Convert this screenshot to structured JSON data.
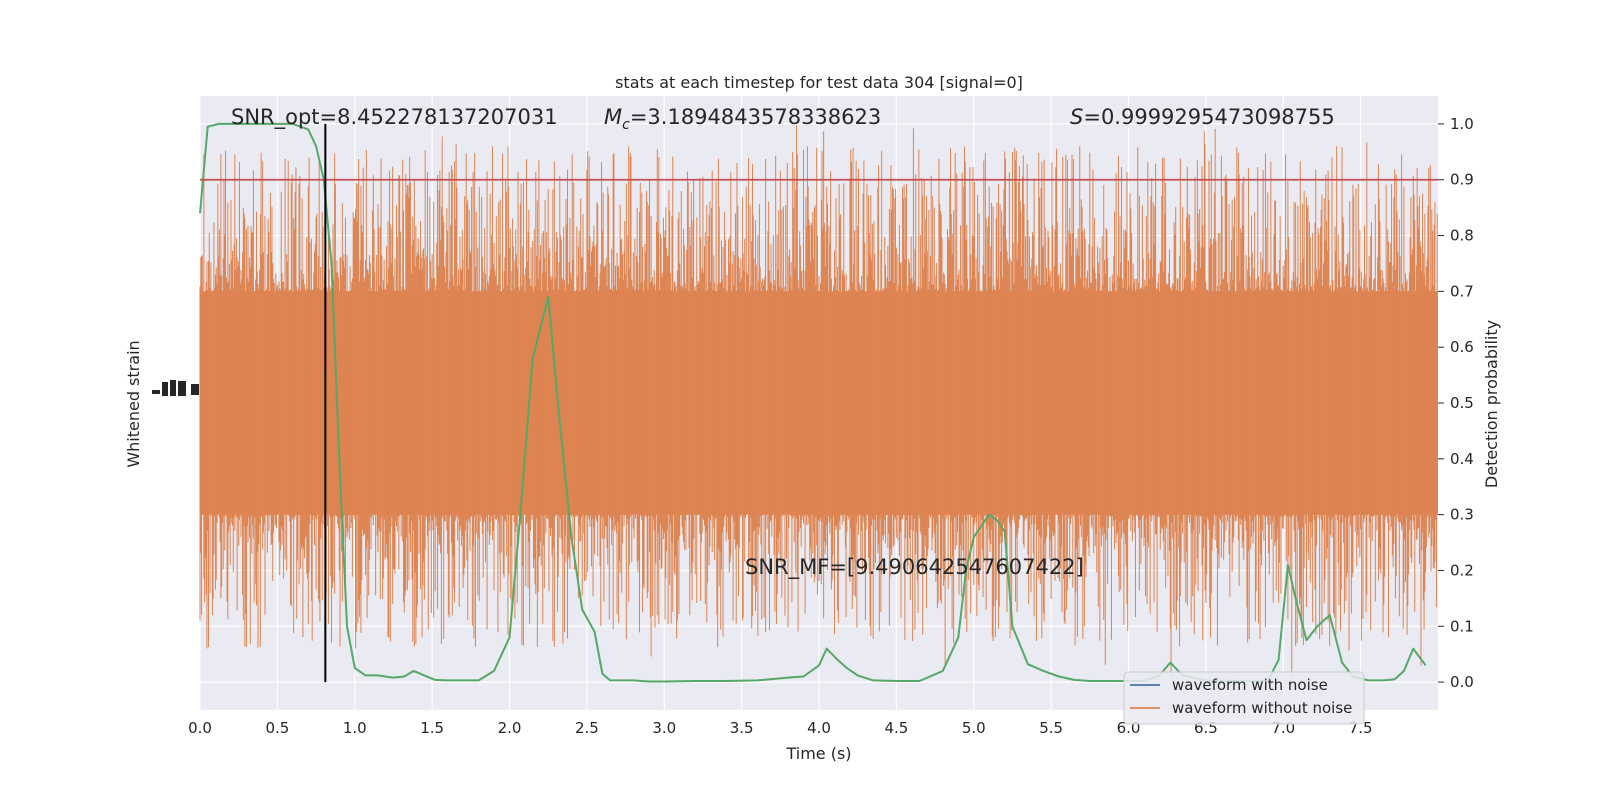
{
  "chart_data": {
    "type": "line",
    "title": "stats at each timestep for test data 304 [signal=0]",
    "xlabel": "Time (s)",
    "ylabel_left": "Whitened strain",
    "ylabel_right": "Detection probability",
    "xlim": [
      0.0,
      8.0
    ],
    "ylim_right": [
      -0.05,
      1.05
    ],
    "grid": true,
    "x_ticks": [
      "0.0",
      "0.5",
      "1.0",
      "1.5",
      "2.0",
      "2.5",
      "3.0",
      "3.5",
      "4.0",
      "4.5",
      "5.0",
      "5.5",
      "6.0",
      "6.5",
      "7.0",
      "7.5"
    ],
    "y_ticks_right": [
      "0.0",
      "0.1",
      "0.2",
      "0.3",
      "0.4",
      "0.5",
      "0.6",
      "0.7",
      "0.8",
      "0.9",
      "1.0"
    ],
    "annotations": {
      "snr_opt": "SNR_opt=8.452278137207031",
      "mc_symbol": "M",
      "mc_subscript": "c",
      "mc_value": "=3.1894843578338623",
      "s_symbol": "S",
      "s_value": "=0.9999295473098755",
      "snr_mf": "SNR_MF=[9.490642547607422]"
    },
    "threshold": {
      "y": 0.9,
      "color": "#c44e52"
    },
    "marker_line": {
      "x": 0.81,
      "color": "#000000"
    },
    "legend": {
      "placement": "lower-right",
      "entries": [
        {
          "label": "waveform with noise",
          "color": "#4c72b0"
        },
        {
          "label": "waveform without noise",
          "color": "#dd8452"
        }
      ]
    },
    "series": [
      {
        "name": "waveform without noise",
        "color": "#dd8452",
        "description_of_envelope": "dense noise band",
        "band_y": [
          0.3,
          0.7
        ],
        "spike_peak_y": 1.0,
        "spike_trough_y": 0.0
      },
      {
        "name": "detection probability",
        "color": "#55a868",
        "x": [
          0.0,
          0.05,
          0.12,
          0.2,
          0.3,
          0.4,
          0.5,
          0.6,
          0.7,
          0.75,
          0.8,
          0.85,
          0.9,
          0.95,
          1.0,
          1.07,
          1.15,
          1.25,
          1.32,
          1.38,
          1.45,
          1.52,
          1.6,
          1.7,
          1.8,
          1.9,
          2.0,
          2.07,
          2.15,
          2.25,
          2.32,
          2.4,
          2.47,
          2.55,
          2.6,
          2.65,
          2.7,
          2.8,
          2.9,
          3.0,
          3.2,
          3.4,
          3.6,
          3.8,
          3.9,
          4.0,
          4.05,
          4.12,
          4.18,
          4.25,
          4.35,
          4.5,
          4.65,
          4.8,
          4.9,
          4.95,
          5.0,
          5.05,
          5.1,
          5.15,
          5.2,
          5.25,
          5.35,
          5.45,
          5.55,
          5.65,
          5.75,
          5.9,
          6.1,
          6.2,
          6.27,
          6.35,
          6.5,
          6.7,
          6.9,
          6.97,
          7.03,
          7.08,
          7.15,
          7.22,
          7.3,
          7.38,
          7.45,
          7.55,
          7.65,
          7.72,
          7.78,
          7.84,
          7.92
        ],
        "y": [
          0.84,
          0.995,
          1.0,
          1.0,
          1.0,
          1.0,
          1.0,
          1.0,
          0.99,
          0.96,
          0.9,
          0.75,
          0.4,
          0.1,
          0.025,
          0.012,
          0.012,
          0.008,
          0.01,
          0.02,
          0.012,
          0.004,
          0.003,
          0.003,
          0.003,
          0.02,
          0.08,
          0.3,
          0.58,
          0.69,
          0.48,
          0.26,
          0.13,
          0.09,
          0.015,
          0.003,
          0.003,
          0.003,
          0.001,
          0.001,
          0.002,
          0.002,
          0.003,
          0.008,
          0.01,
          0.03,
          0.06,
          0.04,
          0.025,
          0.012,
          0.003,
          0.002,
          0.002,
          0.02,
          0.08,
          0.2,
          0.26,
          0.28,
          0.3,
          0.29,
          0.27,
          0.1,
          0.032,
          0.02,
          0.01,
          0.004,
          0.002,
          0.002,
          0.002,
          0.012,
          0.035,
          0.012,
          0.003,
          0.002,
          0.002,
          0.04,
          0.21,
          0.15,
          0.075,
          0.1,
          0.12,
          0.035,
          0.01,
          0.003,
          0.003,
          0.005,
          0.02,
          0.06,
          0.03
        ]
      }
    ]
  }
}
